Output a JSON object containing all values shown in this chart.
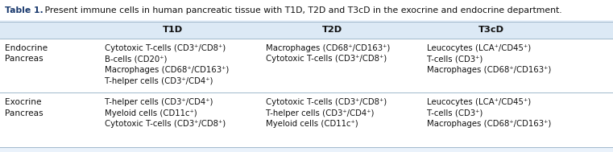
{
  "title_bold": "Table 1.",
  "title_rest": " Present immune cells in human pancreatic tissue with T1D, T2D and T3cD in the exocrine and endocrine department.",
  "header_bg": "#dce9f5",
  "table_bg": "#ffffff",
  "outer_bg": "#eaf2fb",
  "title_bg": "#ffffff",
  "col_headers": [
    "T1D",
    "T2D",
    "T3cD"
  ],
  "row_headers": [
    [
      "Endocrine\nPancreas"
    ],
    [
      "Exocrine\nPancreas"
    ]
  ],
  "cells": [
    [
      "Cytotoxic T-cells (CD3⁺/CD8⁺)\nB-cells (CD20⁺)\nMacrophages (CD68⁺/CD163⁺)\nT-helper cells (CD3⁺/CD4⁺)",
      "Macrophages (CD68⁺/CD163⁺)\nCytotoxic T-cells (CD3⁺/CD8⁺)",
      "Leucocytes (LCA⁺/CD45⁺)\nT-cells (CD3⁺)\nMacrophages (CD68⁺/CD163⁺)"
    ],
    [
      "T-helper cells (CD3⁺/CD4⁺)\nMyeloid cells (CD11c⁺)\nCytotoxic T-cells (CD3⁺/CD8⁺)",
      "Cytotoxic T-cells (CD3⁺/CD8⁺)\nT-helper cells (CD3⁺/CD4⁺)\nMyeloid cells (CD11c⁺)",
      "Leucocytes (LCA⁺/CD45⁺)\nT-cells (CD3⁺)\nMacrophages (CD68⁺/CD163⁺)"
    ]
  ],
  "title_fontsize": 7.8,
  "header_fontsize": 8.2,
  "cell_fontsize": 7.3,
  "row_header_fontsize": 7.6,
  "line_color": "#a0b8cc",
  "text_color": "#111111",
  "title_color": "#1a3a6e"
}
